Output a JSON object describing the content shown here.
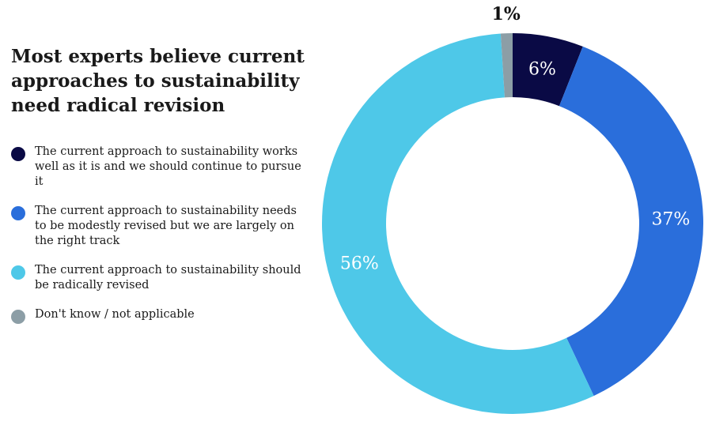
{
  "chart_data": {
    "type": "pie",
    "donut": true,
    "title": "Most experts believe current approaches to sustainability need radical revision",
    "start_angle": "12 o'clock, clockwise",
    "legend_placement": "left",
    "slices": [
      {
        "label": "The current approach to sustainability works well as it is and we should continue to pursue it",
        "value": 6,
        "data_label": "6%",
        "color": "#0a0a45",
        "label_color": "#ffffff"
      },
      {
        "label": "The current approach to sustainability needs to be modestly revised but we are largely on the right track",
        "value": 37,
        "data_label": "37%",
        "color": "#2a6edb",
        "label_color": "#ffffff"
      },
      {
        "label": "The current approach to sustainability should be radically revised",
        "value": 56,
        "data_label": "56%",
        "color": "#4ec8e8",
        "label_color": "#ffffff"
      },
      {
        "label": "Don't know / not applicable",
        "value": 1,
        "data_label": "1%",
        "color": "#8c9ea6",
        "label_color": "#111111"
      }
    ]
  }
}
